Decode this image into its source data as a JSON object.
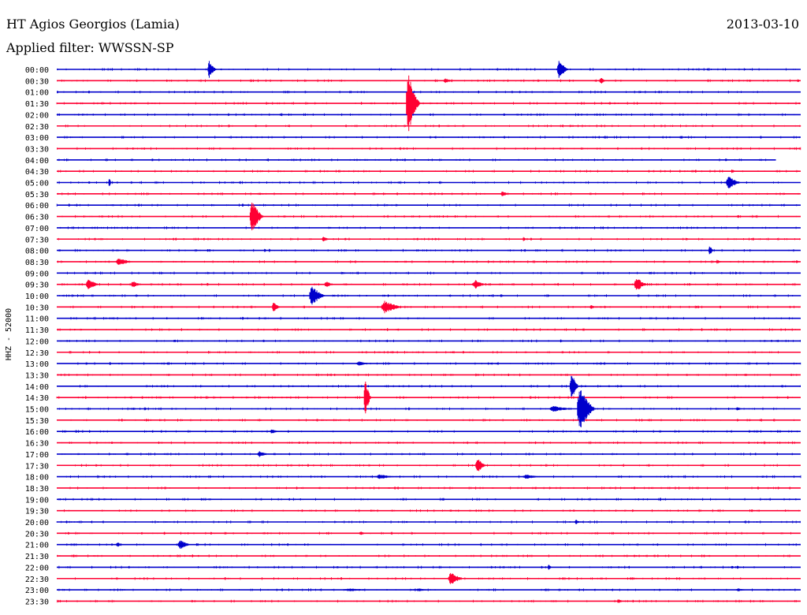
{
  "chart_data": {
    "type": "line",
    "title": "HT Agios Georgios (Lamia)",
    "date": "2013-03-10",
    "subtitle": "Applied filter: WWSSN-SP",
    "ylabel": "HHZ - 52000",
    "grid": false,
    "colors": [
      "#0000cc",
      "#ff0033"
    ],
    "row_labels": [
      "00:00",
      "00:30",
      "01:00",
      "01:30",
      "02:00",
      "02:30",
      "03:00",
      "03:30",
      "04:00",
      "04:30",
      "05:00",
      "05:30",
      "06:00",
      "06:30",
      "07:00",
      "07:30",
      "08:00",
      "08:30",
      "09:00",
      "09:30",
      "10:00",
      "10:30",
      "11:00",
      "11:30",
      "12:00",
      "12:30",
      "13:00",
      "13:30",
      "14:00",
      "14:30",
      "15:00",
      "15:30",
      "16:00",
      "16:30",
      "17:00",
      "17:30",
      "18:00",
      "18:30",
      "19:00",
      "19:30",
      "20:00",
      "20:30",
      "21:00",
      "21:30",
      "22:00",
      "22:30",
      "23:00",
      "23:30"
    ],
    "x_range_minutes": [
      0,
      30
    ],
    "events": [
      {
        "row": 0,
        "minute": 6.1,
        "amplitude": 12,
        "duration": 0.4
      },
      {
        "row": 0,
        "minute": 20.2,
        "amplitude": 12,
        "duration": 0.5
      },
      {
        "row": 1,
        "minute": 21.9,
        "amplitude": 5,
        "duration": 0.3
      },
      {
        "row": 1,
        "minute": 15.6,
        "amplitude": 3,
        "duration": 0.5
      },
      {
        "row": 3,
        "minute": 14.1,
        "amplitude": 40,
        "duration": 0.6
      },
      {
        "row": 9,
        "minute": 27.2,
        "amplitude": 3,
        "duration": 0.2
      },
      {
        "row": 10,
        "minute": 2.1,
        "amplitude": 8,
        "duration": 0.1
      },
      {
        "row": 10,
        "minute": 27.0,
        "amplitude": 8,
        "duration": 0.7
      },
      {
        "row": 11,
        "minute": 17.9,
        "amplitude": 3,
        "duration": 0.5
      },
      {
        "row": 13,
        "minute": 7.8,
        "amplitude": 22,
        "duration": 0.6
      },
      {
        "row": 15,
        "minute": 10.7,
        "amplitude": 4,
        "duration": 0.4
      },
      {
        "row": 15,
        "minute": 18.8,
        "amplitude": 3,
        "duration": 0.2
      },
      {
        "row": 16,
        "minute": 26.3,
        "amplitude": 8,
        "duration": 0.2
      },
      {
        "row": 17,
        "minute": 2.4,
        "amplitude": 5,
        "duration": 0.8
      },
      {
        "row": 17,
        "minute": 26.6,
        "amplitude": 3,
        "duration": 0.3
      },
      {
        "row": 19,
        "minute": 1.2,
        "amplitude": 7,
        "duration": 0.6
      },
      {
        "row": 19,
        "minute": 3.0,
        "amplitude": 4,
        "duration": 0.6
      },
      {
        "row": 19,
        "minute": 16.8,
        "amplitude": 6,
        "duration": 0.6
      },
      {
        "row": 19,
        "minute": 23.3,
        "amplitude": 9,
        "duration": 0.6
      },
      {
        "row": 19,
        "minute": 10.8,
        "amplitude": 4,
        "duration": 0.5
      },
      {
        "row": 20,
        "minute": 10.2,
        "amplitude": 13,
        "duration": 0.7
      },
      {
        "row": 21,
        "minute": 8.7,
        "amplitude": 7,
        "duration": 0.4
      },
      {
        "row": 21,
        "minute": 13.1,
        "amplitude": 8,
        "duration": 1.0
      },
      {
        "row": 21,
        "minute": 21.5,
        "amplitude": 3,
        "duration": 0.3
      },
      {
        "row": 26,
        "minute": 12.1,
        "amplitude": 3,
        "duration": 0.6
      },
      {
        "row": 28,
        "minute": 20.7,
        "amplitude": 18,
        "duration": 0.4
      },
      {
        "row": 29,
        "minute": 12.4,
        "amplitude": 28,
        "duration": 0.3
      },
      {
        "row": 30,
        "minute": 19.9,
        "amplitude": 4,
        "duration": 1.1
      },
      {
        "row": 30,
        "minute": 21.0,
        "amplitude": 28,
        "duration": 0.8
      },
      {
        "row": 30,
        "minute": 27.4,
        "amplitude": 3,
        "duration": 0.3
      },
      {
        "row": 32,
        "minute": 8.6,
        "amplitude": 3,
        "duration": 0.5
      },
      {
        "row": 34,
        "minute": 8.1,
        "amplitude": 4,
        "duration": 0.5
      },
      {
        "row": 35,
        "minute": 16.9,
        "amplitude": 10,
        "duration": 0.5
      },
      {
        "row": 36,
        "minute": 12.9,
        "amplitude": 3,
        "duration": 1.0
      },
      {
        "row": 36,
        "minute": 18.8,
        "amplitude": 3,
        "duration": 1.0
      },
      {
        "row": 40,
        "minute": 20.9,
        "amplitude": 3,
        "duration": 0.3
      },
      {
        "row": 41,
        "minute": 12.2,
        "amplitude": 3,
        "duration": 0.3
      },
      {
        "row": 42,
        "minute": 4.9,
        "amplitude": 6,
        "duration": 0.6
      },
      {
        "row": 42,
        "minute": 2.4,
        "amplitude": 3,
        "duration": 0.4
      },
      {
        "row": 44,
        "minute": 19.8,
        "amplitude": 4,
        "duration": 0.2
      },
      {
        "row": 45,
        "minute": 15.8,
        "amplitude": 8,
        "duration": 0.7
      },
      {
        "row": 45,
        "minute": 23.1,
        "amplitude": 2,
        "duration": 0.5
      },
      {
        "row": 46,
        "minute": 11.6,
        "amplitude": 2,
        "duration": 1.5
      },
      {
        "row": 46,
        "minute": 14.5,
        "amplitude": 2,
        "duration": 0.7
      },
      {
        "row": 46,
        "minute": 27.4,
        "amplitude": 2,
        "duration": 0.6
      },
      {
        "row": 47,
        "minute": 22.6,
        "amplitude": 3,
        "duration": 0.3
      }
    ],
    "gaps": [
      {
        "row": 8,
        "minute_start": 29.0,
        "minute_end": 30.0
      }
    ]
  }
}
